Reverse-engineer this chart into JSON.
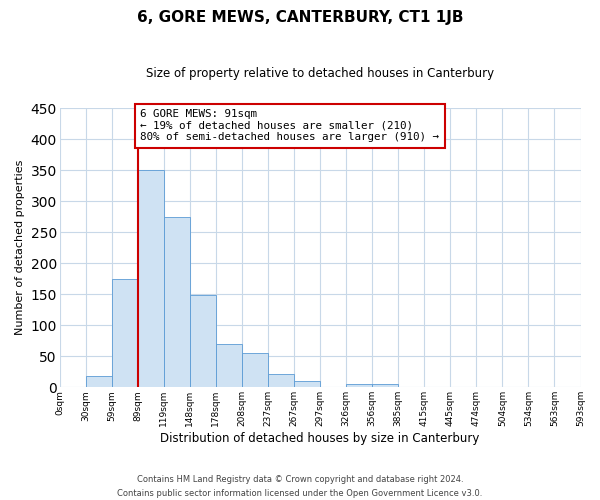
{
  "title": "6, GORE MEWS, CANTERBURY, CT1 1JB",
  "subtitle": "Size of property relative to detached houses in Canterbury",
  "xlabel": "Distribution of detached houses by size in Canterbury",
  "ylabel": "Number of detached properties",
  "bar_values": [
    0,
    18,
    175,
    350,
    275,
    148,
    70,
    55,
    22,
    10,
    0,
    5,
    5,
    0,
    1,
    0,
    0,
    0,
    0,
    0
  ],
  "bin_labels": [
    "0sqm",
    "30sqm",
    "59sqm",
    "89sqm",
    "119sqm",
    "148sqm",
    "178sqm",
    "208sqm",
    "237sqm",
    "267sqm",
    "297sqm",
    "326sqm",
    "356sqm",
    "385sqm",
    "415sqm",
    "445sqm",
    "474sqm",
    "504sqm",
    "534sqm",
    "563sqm",
    "593sqm"
  ],
  "bar_color": "#cfe2f3",
  "bar_edge_color": "#5b9bd5",
  "annotation_box_text": "6 GORE MEWS: 91sqm\n← 19% of detached houses are smaller (210)\n80% of semi-detached houses are larger (910) →",
  "annotation_box_color": "#ffffff",
  "annotation_box_edge_color": "#cc0000",
  "redline_color": "#cc0000",
  "ylim": [
    0,
    450
  ],
  "yticks": [
    0,
    50,
    100,
    150,
    200,
    250,
    300,
    350,
    400,
    450
  ],
  "footer_line1": "Contains HM Land Registry data © Crown copyright and database right 2024.",
  "footer_line2": "Contains public sector information licensed under the Open Government Licence v3.0.",
  "background_color": "#ffffff",
  "grid_color": "#c8d8e8"
}
